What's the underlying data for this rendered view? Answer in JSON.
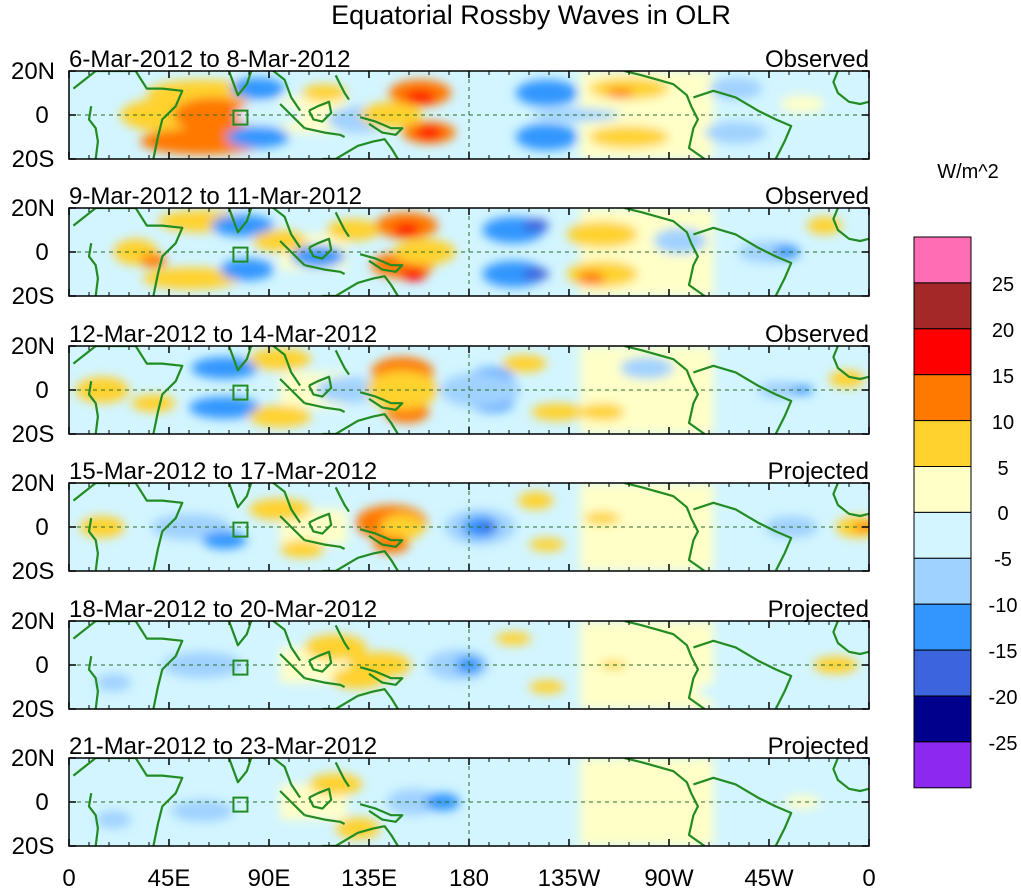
{
  "title": "Equatorial Rossby Waves in OLR",
  "panels": [
    {
      "date_range": "6-Mar-2012 to 8-Mar-2012",
      "status": "Observed"
    },
    {
      "date_range": "9-Mar-2012 to 11-Mar-2012",
      "status": "Observed"
    },
    {
      "date_range": "12-Mar-2012 to 14-Mar-2012",
      "status": "Observed"
    },
    {
      "date_range": "15-Mar-2012 to 17-Mar-2012",
      "status": "Projected"
    },
    {
      "date_range": "18-Mar-2012 to 20-Mar-2012",
      "status": "Projected"
    },
    {
      "date_range": "21-Mar-2012 to 23-Mar-2012",
      "status": "Projected"
    }
  ],
  "lat_labels": [
    "20N",
    "0",
    "20S"
  ],
  "lon_labels": [
    "0",
    "45E",
    "90E",
    "135E",
    "180",
    "135W",
    "90W",
    "45W",
    "0"
  ],
  "colorbar": {
    "unit": "W/m^2",
    "tick_labels": [
      "25",
      "20",
      "15",
      "10",
      "5",
      "0",
      "-5",
      "-10",
      "-15",
      "-20",
      "-25"
    ],
    "colors_top_to_bottom": [
      "#ff6eb4",
      "#a52828",
      "#ff0000",
      "#ff7800",
      "#ffd22d",
      "#ffffc8",
      "#d2f5ff",
      "#a0d2ff",
      "#3296ff",
      "#3c64dc",
      "#00008c",
      "#8c28f0"
    ]
  },
  "land_color": "#228b22"
}
